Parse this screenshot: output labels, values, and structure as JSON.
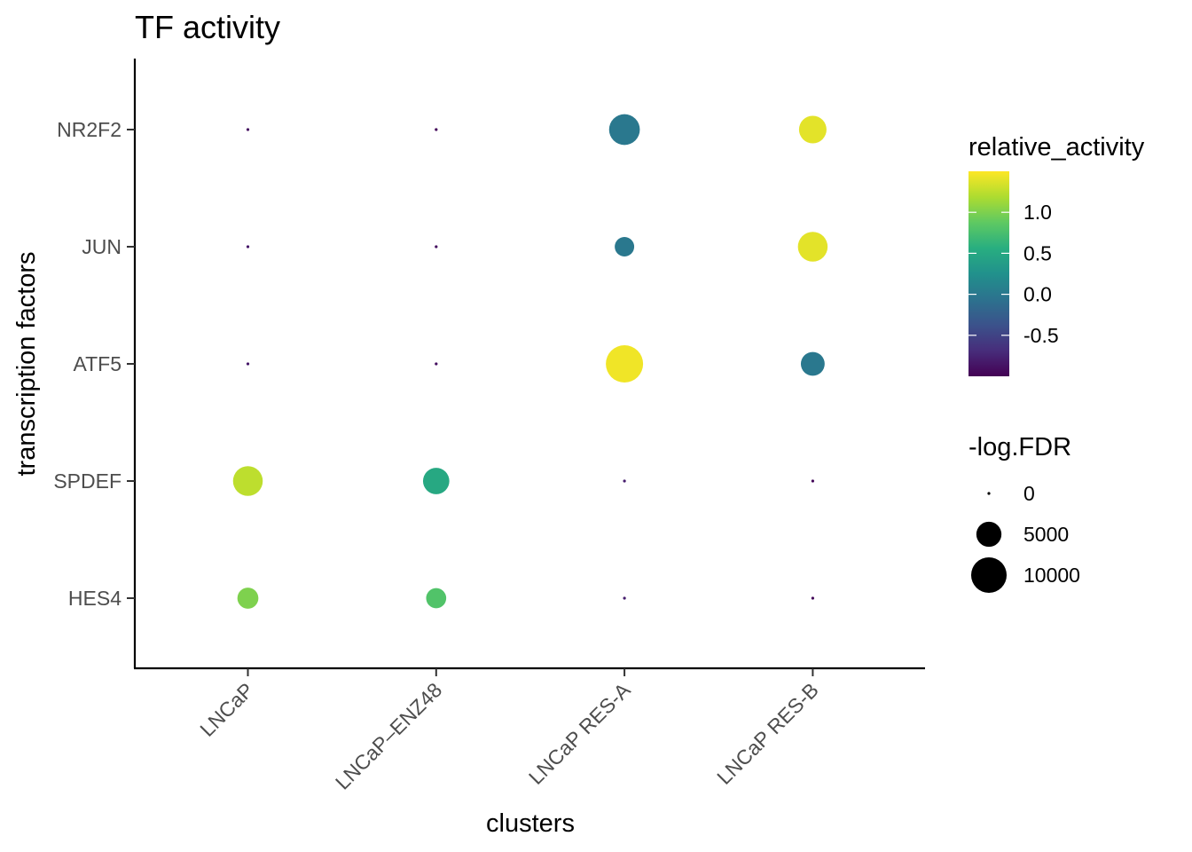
{
  "chart_data": {
    "type": "scatter",
    "title": "TF activity",
    "xlabel": "clusters",
    "ylabel": "transcription factors",
    "x_categories": [
      "LNCaP",
      "LNCaP–ENZ48",
      "LNCaP RES-A",
      "LNCaP RES-B"
    ],
    "y_categories": [
      "HES4",
      "SPDEF",
      "ATF5",
      "JUN",
      "NR2F2"
    ],
    "grid": false,
    "legend_placement": "right",
    "points": [
      {
        "cluster": "LNCaP",
        "tf": "NR2F2",
        "relative_activity": -0.9,
        "neg_log_fdr": 0
      },
      {
        "cluster": "LNCaP–ENZ48",
        "tf": "NR2F2",
        "relative_activity": -0.95,
        "neg_log_fdr": 0
      },
      {
        "cluster": "LNCaP RES-A",
        "tf": "NR2F2",
        "relative_activity": 0.0,
        "neg_log_fdr": 7500
      },
      {
        "cluster": "LNCaP RES-B",
        "tf": "NR2F2",
        "relative_activity": 1.4,
        "neg_log_fdr": 6000
      },
      {
        "cluster": "LNCaP",
        "tf": "JUN",
        "relative_activity": -0.85,
        "neg_log_fdr": 0
      },
      {
        "cluster": "LNCaP–ENZ48",
        "tf": "JUN",
        "relative_activity": -0.9,
        "neg_log_fdr": 0
      },
      {
        "cluster": "LNCaP RES-A",
        "tf": "JUN",
        "relative_activity": 0.0,
        "neg_log_fdr": 3000
      },
      {
        "cluster": "LNCaP RES-B",
        "tf": "JUN",
        "relative_activity": 1.4,
        "neg_log_fdr": 7000
      },
      {
        "cluster": "LNCaP",
        "tf": "ATF5",
        "relative_activity": -0.85,
        "neg_log_fdr": 0
      },
      {
        "cluster": "LNCaP–ENZ48",
        "tf": "ATF5",
        "relative_activity": -0.9,
        "neg_log_fdr": 0
      },
      {
        "cluster": "LNCaP RES-A",
        "tf": "ATF5",
        "relative_activity": 1.45,
        "neg_log_fdr": 11000
      },
      {
        "cluster": "LNCaP RES-B",
        "tf": "ATF5",
        "relative_activity": 0.0,
        "neg_log_fdr": 4500
      },
      {
        "cluster": "LNCaP",
        "tf": "SPDEF",
        "relative_activity": 1.25,
        "neg_log_fdr": 7000
      },
      {
        "cluster": "LNCaP–ENZ48",
        "tf": "SPDEF",
        "relative_activity": 0.5,
        "neg_log_fdr": 5500
      },
      {
        "cluster": "LNCaP RES-A",
        "tf": "SPDEF",
        "relative_activity": -0.8,
        "neg_log_fdr": 0
      },
      {
        "cluster": "LNCaP RES-B",
        "tf": "SPDEF",
        "relative_activity": -0.95,
        "neg_log_fdr": 0
      },
      {
        "cluster": "LNCaP",
        "tf": "HES4",
        "relative_activity": 1.0,
        "neg_log_fdr": 3500
      },
      {
        "cluster": "LNCaP–ENZ48",
        "tf": "HES4",
        "relative_activity": 0.8,
        "neg_log_fdr": 3200
      },
      {
        "cluster": "LNCaP RES-A",
        "tf": "HES4",
        "relative_activity": -0.8,
        "neg_log_fdr": 0
      },
      {
        "cluster": "LNCaP RES-B",
        "tf": "HES4",
        "relative_activity": -0.95,
        "neg_log_fdr": 0
      }
    ],
    "color_scale": {
      "title": "relative_activity",
      "palette": "viridis",
      "range": [
        -1.0,
        1.5
      ],
      "ticks": [
        1.0,
        0.5,
        0.0,
        -0.5
      ],
      "tick_labels": [
        "1.0",
        "0.5",
        "0.0",
        "-0.5"
      ]
    },
    "size_scale": {
      "title": "-log.FDR",
      "breaks": [
        0,
        5000,
        10000
      ],
      "labels": [
        "0",
        "5000",
        "10000"
      ],
      "range": [
        0,
        11000
      ]
    }
  }
}
